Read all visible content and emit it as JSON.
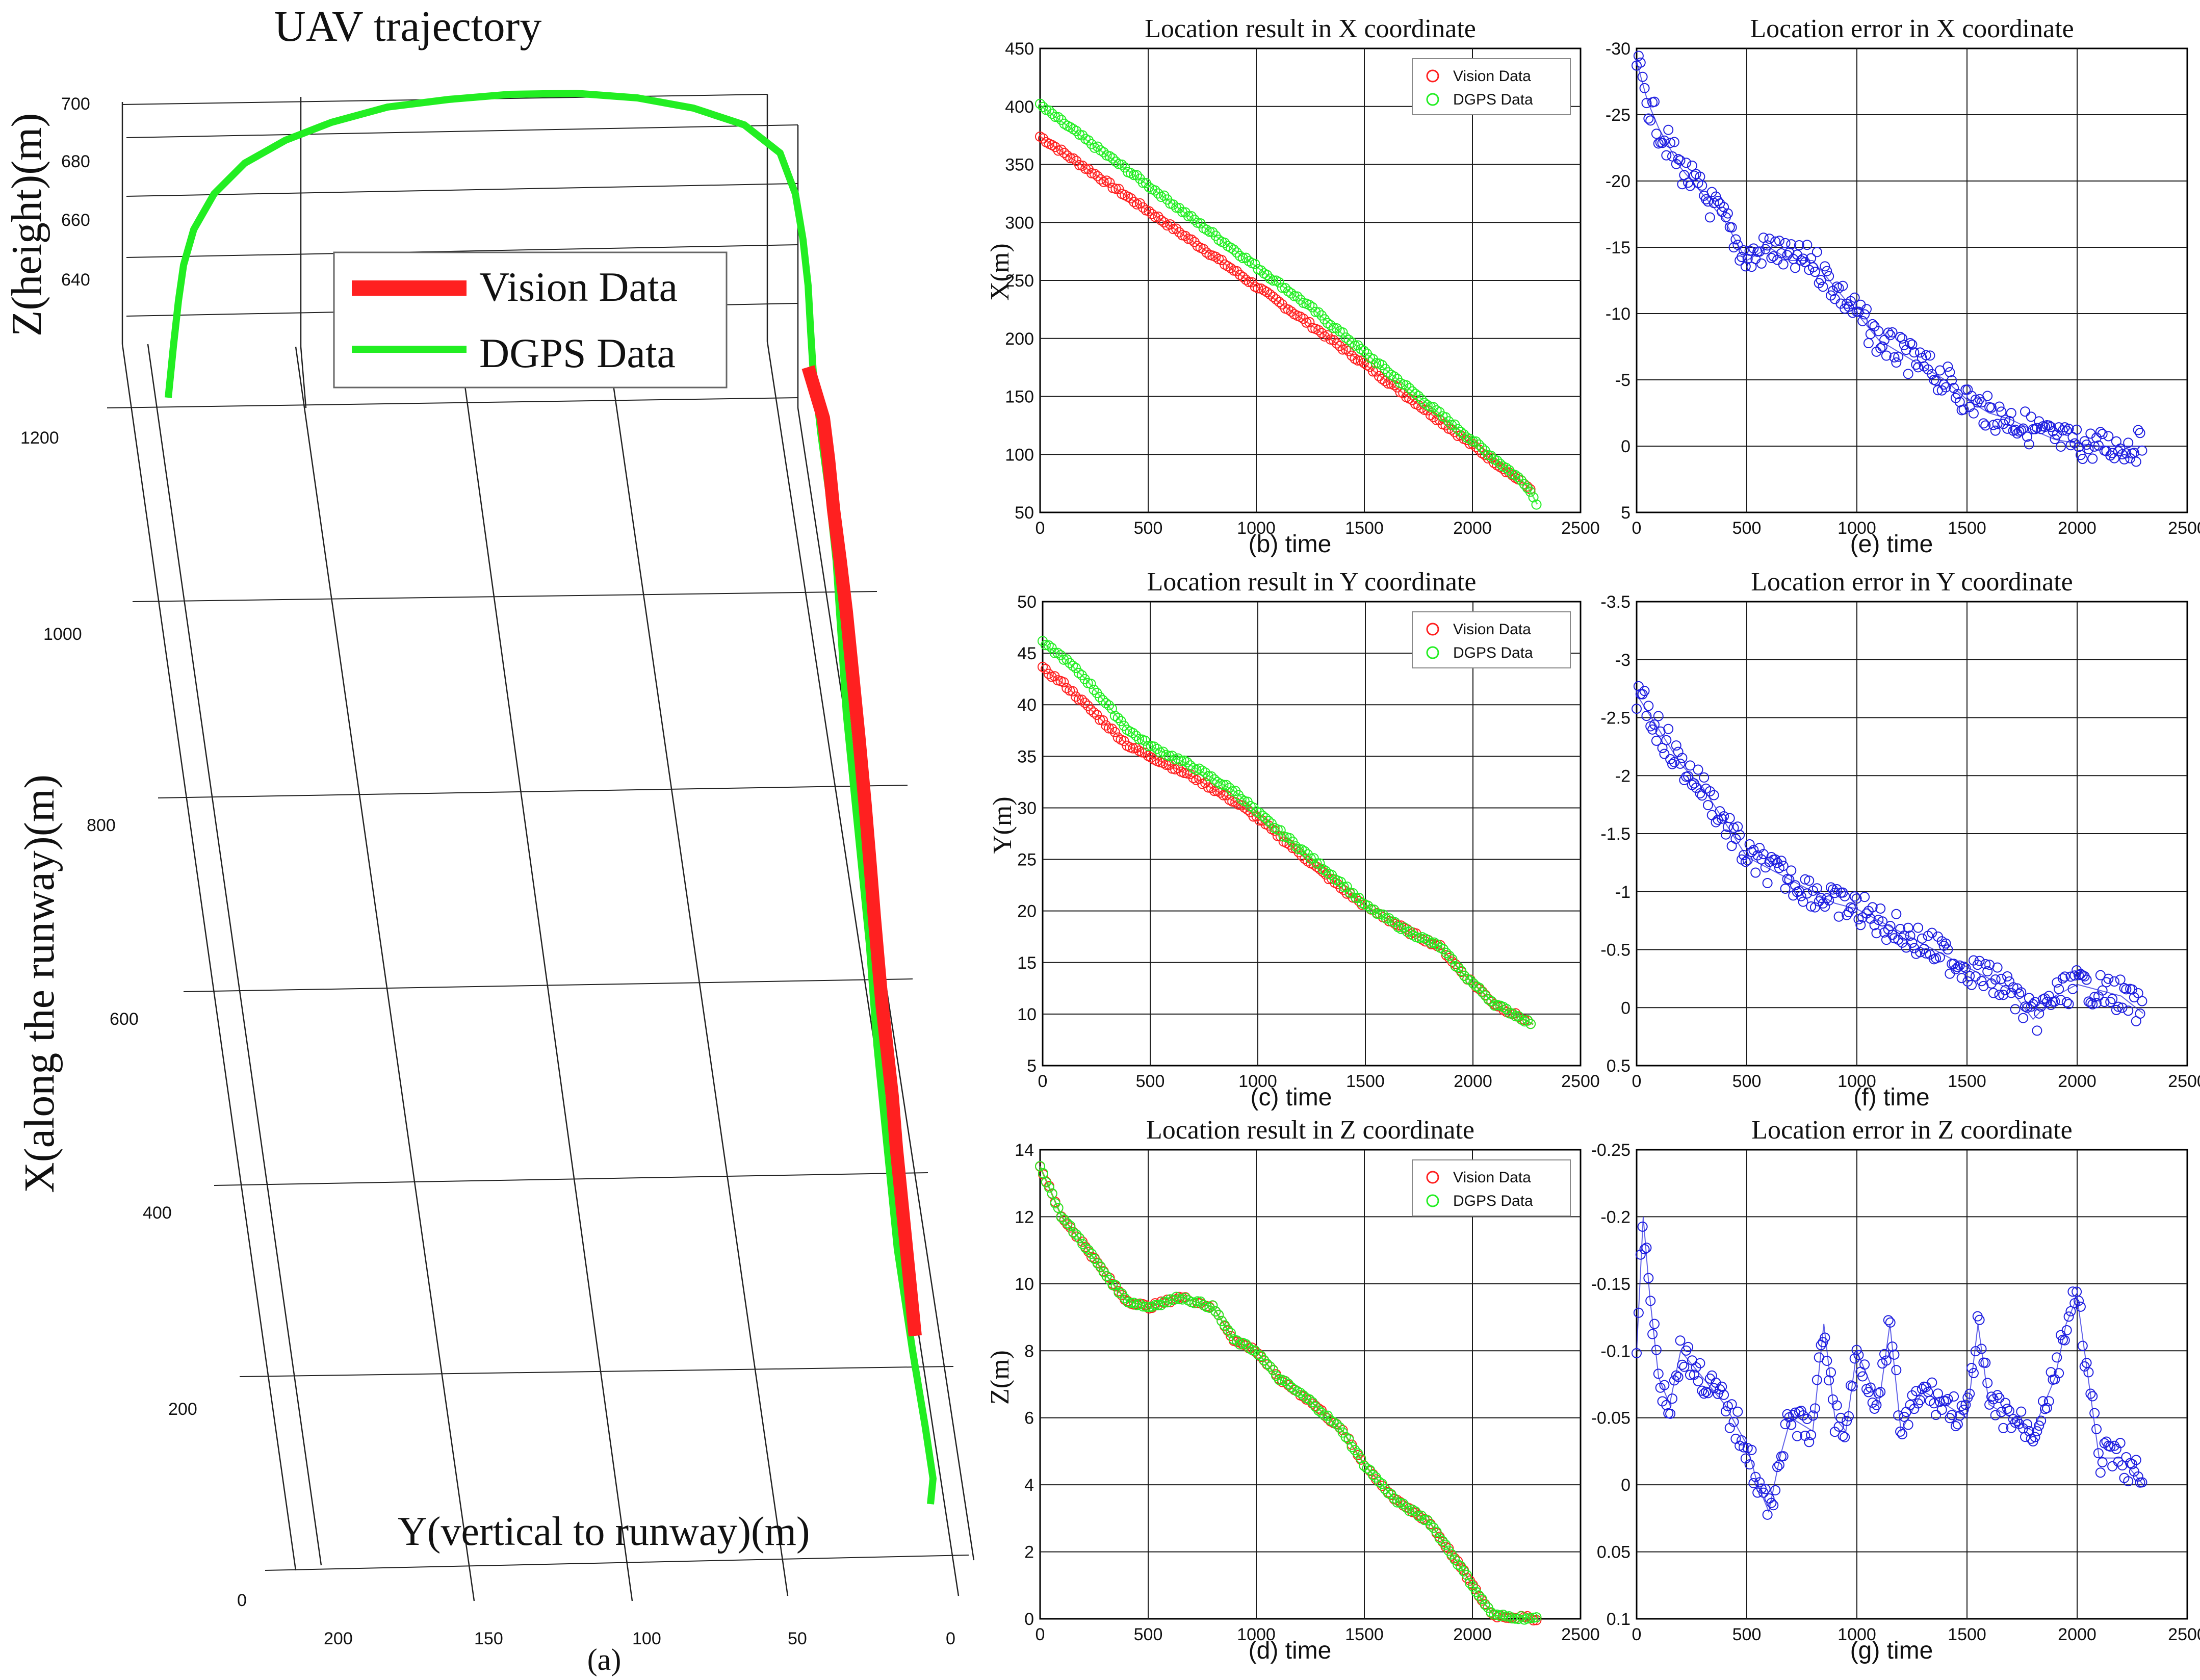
{
  "colors": {
    "vision": "#ff2020",
    "dgps": "#22ee22",
    "error": "#1f1fe0"
  },
  "chart_data": [
    {
      "id": "a",
      "type": "line",
      "title": "UAV trajectory",
      "caption": "(a)",
      "zlabel": "Z(height)(m)",
      "xlabel": "X(along the runway)(m)",
      "ylabel": "Y(vertical to runway)(m)",
      "z_ticks": [
        "700",
        "680",
        "660",
        "640"
      ],
      "x_ticks": [
        "1200",
        "1000",
        "800",
        "600",
        "400",
        "200",
        "0"
      ],
      "y_ticks": [
        "200",
        "150",
        "100",
        "50",
        "0"
      ],
      "legend": [
        {
          "name": "Vision Data",
          "color": "#ff2020"
        },
        {
          "name": "DGPS Data",
          "color": "#22ee22"
        }
      ],
      "series": [
        {
          "name": "DGPS Data",
          "x": [
            1200,
            1200,
            1200,
            1150,
            1100,
            1000,
            900,
            800,
            700,
            600,
            500,
            400,
            300,
            200,
            100
          ],
          "y": [
            210,
            175,
            50,
            35,
            30,
            28,
            26,
            24,
            22,
            22,
            20,
            18,
            16,
            14,
            12
          ],
          "z": [
            628,
            670,
            702,
            680,
            645,
            640,
            636,
            632,
            628,
            624,
            620,
            616,
            612,
            608,
            604
          ]
        },
        {
          "name": "Vision Data",
          "x": [
            1200,
            1100,
            1000,
            900,
            800,
            700,
            600,
            500,
            400,
            300
          ],
          "y": [
            42,
            36,
            32,
            29,
            27,
            25,
            24,
            22,
            20,
            18
          ],
          "z": [
            645,
            640,
            636,
            632,
            628,
            624,
            620,
            616,
            612,
            608
          ]
        }
      ]
    },
    {
      "id": "b",
      "type": "scatter",
      "title": "Location result in X coordinate",
      "caption": "(b) time",
      "ylabel": "X(m)",
      "xlim": [
        0,
        2500
      ],
      "ylim": [
        50,
        450
      ],
      "xticks": [
        "0",
        "500",
        "1000",
        "1500",
        "2000",
        "2500"
      ],
      "yticks": [
        "50",
        "100",
        "150",
        "200",
        "250",
        "300",
        "350",
        "400",
        "450"
      ],
      "legend": [
        {
          "name": "Vision Data",
          "color": "#ff2020"
        },
        {
          "name": "DGPS Data",
          "color": "#22ee22"
        }
      ],
      "series": [
        {
          "name": "Vision Data",
          "x": [
            0,
            250,
            500,
            750,
            1000,
            1250,
            1500,
            1750,
            2000,
            2250,
            2280
          ],
          "y": [
            374,
            342,
            310,
            278,
            245,
            212,
            178,
            143,
            108,
            73,
            70
          ]
        },
        {
          "name": "DGPS Data",
          "x": [
            0,
            250,
            500,
            750,
            1000,
            1250,
            1500,
            1750,
            2000,
            2250,
            2300
          ],
          "y": [
            401,
            366,
            332,
            297,
            262,
            227,
            188,
            150,
            112,
            74,
            57
          ]
        }
      ]
    },
    {
      "id": "e",
      "type": "scatter",
      "title": "Location error in X coordinate",
      "caption": "(e) time",
      "xlim": [
        0,
        2500
      ],
      "ylim": [
        -30,
        5
      ],
      "y_reversed": true,
      "xticks": [
        "0",
        "500",
        "1000",
        "1500",
        "2000",
        "2500"
      ],
      "yticks": [
        "-30",
        "-25",
        "-20",
        "-15",
        "-10",
        "-5",
        "0",
        "5"
      ],
      "series": [
        {
          "name": "error",
          "x": [
            0,
            50,
            100,
            200,
            300,
            400,
            500,
            600,
            700,
            800,
            900,
            1000,
            1100,
            1200,
            1300,
            1400,
            1500,
            1600,
            1700,
            1800,
            1900,
            2000,
            2100,
            2200,
            2300
          ],
          "y": [
            -29,
            -26,
            -24,
            -21,
            -19,
            -17,
            -14,
            -15,
            -14,
            -14,
            -12,
            -10,
            -8,
            -7,
            -6,
            -5,
            -3.5,
            -2.5,
            -2,
            -1.2,
            -0.5,
            -0.2,
            0,
            0,
            0
          ]
        }
      ]
    },
    {
      "id": "c",
      "type": "scatter",
      "title": "Location result in Y coordinate",
      "caption": "(c) time",
      "ylabel": "Y(m)",
      "xlim": [
        0,
        2500
      ],
      "ylim": [
        5,
        50
      ],
      "xticks": [
        "0",
        "500",
        "1000",
        "1500",
        "2000",
        "2500"
      ],
      "yticks": [
        "5",
        "10",
        "15",
        "20",
        "25",
        "30",
        "35",
        "40",
        "45",
        "50"
      ],
      "legend": [
        {
          "name": "Vision Data",
          "color": "#ff2020"
        },
        {
          "name": "DGPS Data",
          "color": "#22ee22"
        }
      ],
      "series": [
        {
          "name": "Vision Data",
          "x": [
            0,
            100,
            200,
            300,
            400,
            500,
            700,
            900,
            1000,
            1200,
            1400,
            1500,
            1700,
            1850,
            1950,
            2100,
            2280
          ],
          "y": [
            43.5,
            42,
            40,
            38,
            36,
            35,
            33,
            30.5,
            29,
            25.5,
            22,
            20.5,
            18,
            16.5,
            14,
            11,
            9
          ]
        },
        {
          "name": "DGPS Data",
          "x": [
            0,
            100,
            200,
            300,
            400,
            500,
            700,
            900,
            1000,
            1200,
            1400,
            1500,
            1700,
            1850,
            1950,
            2100,
            2280
          ],
          "y": [
            46,
            44.5,
            42.5,
            40,
            37.5,
            36,
            34,
            31.5,
            29.5,
            26,
            22.5,
            20.5,
            18,
            16.5,
            14,
            11,
            9
          ]
        }
      ]
    },
    {
      "id": "f",
      "type": "scatter",
      "title": "Location error in Y coordinate",
      "caption": "(f) time",
      "xlim": [
        0,
        2500
      ],
      "ylim": [
        -3.5,
        0.5
      ],
      "y_reversed": true,
      "xticks": [
        "0",
        "500",
        "1000",
        "1500",
        "2000",
        "2500"
      ],
      "yticks": [
        "-3.5",
        "-3",
        "-2.5",
        "-2",
        "-1.5",
        "-1",
        "-0.5",
        "0",
        "0.5"
      ],
      "series": [
        {
          "name": "error",
          "x": [
            0,
            100,
            200,
            300,
            400,
            500,
            600,
            700,
            800,
            900,
            1000,
            1100,
            1200,
            1300,
            1400,
            1500,
            1600,
            1700,
            1800,
            1900,
            2000,
            2100,
            2200,
            2300
          ],
          "y": [
            -2.7,
            -2.4,
            -2.1,
            -1.9,
            -1.6,
            -1.3,
            -1.2,
            -1.1,
            -1.0,
            -0.9,
            -0.85,
            -0.75,
            -0.65,
            -0.55,
            -0.45,
            -0.35,
            -0.25,
            -0.15,
            0.1,
            -0.1,
            -0.2,
            -0.15,
            -0.1,
            0.05
          ]
        }
      ]
    },
    {
      "id": "d",
      "type": "scatter",
      "title": "Location result in Z coordinate",
      "caption": "(d) time",
      "ylabel": "Z(m)",
      "xlim": [
        0,
        2500
      ],
      "ylim": [
        0,
        14
      ],
      "xticks": [
        "0",
        "500",
        "1000",
        "1500",
        "2000",
        "2500"
      ],
      "yticks": [
        "0",
        "2",
        "4",
        "6",
        "8",
        "10",
        "12",
        "14"
      ],
      "legend": [
        {
          "name": "Vision Data",
          "color": "#ff2020"
        },
        {
          "name": "DGPS Data",
          "color": "#22ee22"
        }
      ],
      "series": [
        {
          "name": "Vision Data",
          "x": [
            0,
            100,
            200,
            300,
            400,
            500,
            650,
            800,
            900,
            1000,
            1100,
            1250,
            1400,
            1500,
            1650,
            1800,
            1950,
            2050,
            2100,
            2300
          ],
          "y": [
            13.5,
            12,
            11.2,
            10.3,
            9.5,
            9.3,
            9.6,
            9.3,
            8.3,
            8,
            7.2,
            6.5,
            5.6,
            4.6,
            3.5,
            2.9,
            1.5,
            0.5,
            0.1,
            0
          ]
        },
        {
          "name": "DGPS Data",
          "x": [
            0,
            100,
            200,
            300,
            400,
            500,
            650,
            800,
            900,
            1000,
            1100,
            1250,
            1400,
            1500,
            1650,
            1800,
            1950,
            2050,
            2100,
            2300
          ],
          "y": [
            13.5,
            12,
            11.2,
            10.3,
            9.5,
            9.3,
            9.6,
            9.3,
            8.3,
            8,
            7.2,
            6.5,
            5.6,
            4.6,
            3.5,
            2.9,
            1.5,
            0.5,
            0.1,
            0
          ]
        }
      ]
    },
    {
      "id": "g",
      "type": "scatter",
      "title": "Location error in Z coordinate",
      "caption": "(g) time",
      "xlim": [
        0,
        2500
      ],
      "ylim": [
        -0.25,
        0.1
      ],
      "y_reversed": true,
      "xticks": [
        "0",
        "500",
        "1000",
        "1500",
        "2000",
        "2500"
      ],
      "yticks": [
        "-0.25",
        "-0.2",
        "-0.15",
        "-0.1",
        "-0.05",
        "0",
        "0.05",
        "0.1"
      ],
      "series": [
        {
          "name": "error",
          "x": [
            0,
            30,
            60,
            100,
            150,
            200,
            300,
            400,
            500,
            550,
            600,
            650,
            700,
            800,
            850,
            900,
            950,
            1000,
            1100,
            1150,
            1200,
            1300,
            1400,
            1500,
            1550,
            1600,
            1700,
            1800,
            1900,
            1950,
            2000,
            2050,
            2100,
            2150,
            2200,
            2300
          ],
          "y": [
            -0.1,
            -0.2,
            -0.14,
            -0.08,
            -0.06,
            -0.1,
            -0.08,
            -0.06,
            -0.03,
            0,
            0.02,
            -0.02,
            -0.05,
            -0.04,
            -0.12,
            -0.05,
            -0.04,
            -0.1,
            -0.06,
            -0.12,
            -0.04,
            -0.07,
            -0.06,
            -0.05,
            -0.12,
            -0.06,
            -0.05,
            -0.04,
            -0.08,
            -0.12,
            -0.14,
            -0.08,
            -0.02,
            -0.02,
            -0.02,
            0
          ]
        }
      ]
    }
  ]
}
